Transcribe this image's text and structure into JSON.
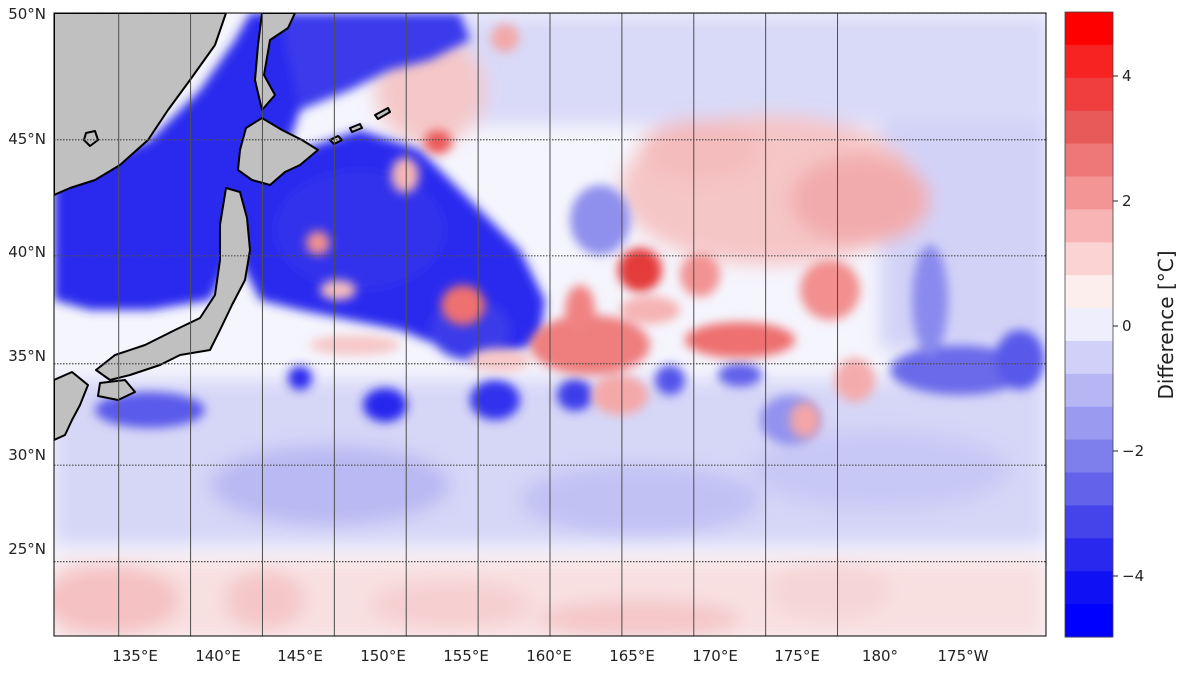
{
  "figure": {
    "lat_labels": [
      "50°N",
      "45°N",
      "40°N",
      "35°N",
      "30°N",
      "25°N"
    ],
    "lon_labels": [
      "135°E",
      "140°E",
      "145°E",
      "150°E",
      "155°E",
      "160°E",
      "165°E",
      "170°E",
      "175°E",
      "180°",
      "175°W"
    ]
  },
  "colorbar": {
    "label": "Difference [°C]",
    "tick_labels": [
      "4",
      "2",
      "0",
      "−2",
      "−4"
    ],
    "colors": [
      "#ff0000",
      "#f72222",
      "#f03d3d",
      "#e85a5a",
      "#ee7878",
      "#f49595",
      "#f8b4b4",
      "#fbd3d3",
      "#fdeeee",
      "#eeeefd",
      "#d0d0f8",
      "#b6b6f4",
      "#9a9af0",
      "#7e7eec",
      "#6262ea",
      "#4444ea",
      "#2828ee",
      "#1010f4",
      "#0000ff"
    ]
  },
  "colors": {
    "land": "#c0c0c0",
    "coast": "#000000",
    "grid": "#4d4d4d",
    "warm_max": "#ff0000",
    "cold_max": "#0000ff",
    "neutral": "#f5f5fd"
  },
  "map_extent": {
    "lon_range_east": [
      130.5,
      199.5
    ],
    "lat_range": [
      21,
      50
    ],
    "meridians_east": [
      135,
      140,
      145,
      150,
      155,
      160,
      165,
      170,
      175,
      180,
      185
    ],
    "parallels": [
      50,
      45,
      40,
      35,
      30,
      25
    ]
  }
}
